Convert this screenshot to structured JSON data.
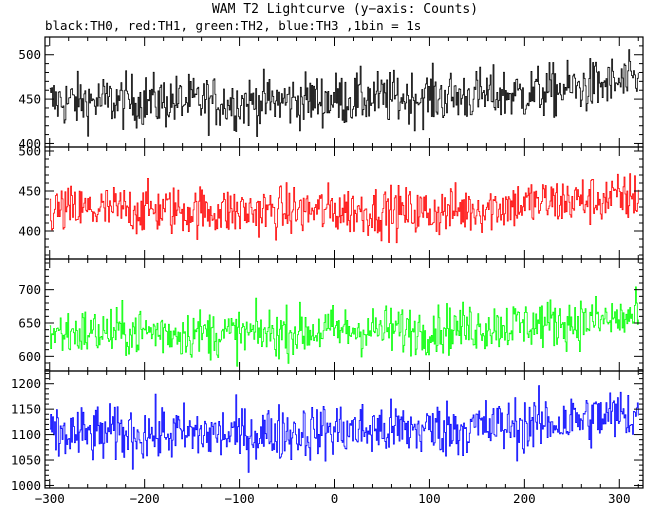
{
  "title": "WAM T2 Lightcurve (y−axis: Counts)",
  "subtitle": "black:TH0, red:TH1, green:TH2, blue:TH3 ,1bin = 1s",
  "chart_data": {
    "type": "line",
    "title": "WAM T2 Lightcurve (y−axis: Counts)",
    "subtitle": "black:TH0, red:TH1, green:TH2, blue:TH3 ,1bin = 1s",
    "xlim": [
      -305,
      325
    ],
    "x_ticks": [
      -300,
      -200,
      -100,
      0,
      100,
      200,
      300
    ],
    "x_tick_labels": [
      "−300",
      "−200",
      "−100",
      "0",
      "100",
      "200",
      "300"
    ],
    "x_start": -300,
    "x_end": 320,
    "x_step": 1,
    "series": [
      {
        "name": "TH0",
        "color": "#000000",
        "ylim": [
          396,
          520
        ],
        "y_ticks": [
          400,
          450,
          500
        ],
        "trend_x": [
          -300,
          -200,
          -100,
          0,
          100,
          200,
          300,
          320
        ],
        "trend_y": [
          447,
          448,
          446,
          450,
          452,
          456,
          468,
          470
        ],
        "noise_amplitude": 27
      },
      {
        "name": "TH1",
        "color": "#ff0000",
        "ylim": [
          365,
          505
        ],
        "y_ticks": [
          400,
          450,
          500
        ],
        "trend_x": [
          -300,
          -200,
          -100,
          0,
          100,
          200,
          300,
          320
        ],
        "trend_y": [
          425,
          427,
          424,
          426,
          423,
          434,
          441,
          444
        ],
        "noise_amplitude": 28
      },
      {
        "name": "TH2",
        "color": "#00ff00",
        "ylim": [
          578,
          746
        ],
        "y_ticks": [
          600,
          650,
          700
        ],
        "trend_x": [
          -300,
          -200,
          -100,
          0,
          100,
          200,
          300,
          320
        ],
        "trend_y": [
          635,
          637,
          633,
          639,
          640,
          648,
          655,
          660
        ],
        "noise_amplitude": 33
      },
      {
        "name": "TH3",
        "color": "#0000ff",
        "ylim": [
          995,
          1225
        ],
        "y_ticks": [
          1000,
          1050,
          1100,
          1150,
          1200
        ],
        "y_tick_labels": [
          "1000",
          "1050",
          "1100",
          "1150",
          "1200"
        ],
        "trend_x": [
          -300,
          -200,
          -100,
          0,
          100,
          200,
          300,
          320
        ],
        "trend_y": [
          1098,
          1102,
          1100,
          1108,
          1110,
          1118,
          1138,
          1142
        ],
        "noise_amplitude": 50
      }
    ]
  }
}
